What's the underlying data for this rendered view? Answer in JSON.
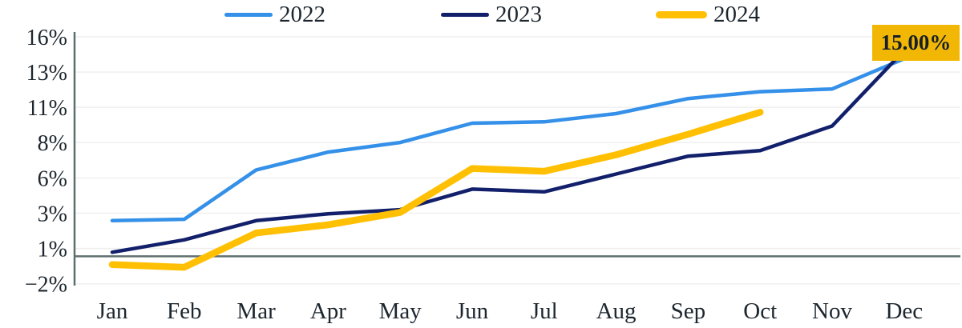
{
  "chart_data": {
    "type": "line",
    "title": "",
    "xlabel": "",
    "ylabel": "",
    "categories": [
      "Jan",
      "Feb",
      "Mar",
      "Apr",
      "May",
      "Jun",
      "Jul",
      "Aug",
      "Sep",
      "Oct",
      "Nov",
      "Dec"
    ],
    "series": [
      {
        "name": "2022",
        "color": "#3490e8",
        "line_width": 4.5,
        "values": [
          2.6,
          2.7,
          6.3,
          7.6,
          8.3,
          9.7,
          9.8,
          10.4,
          11.5,
          12.0,
          12.2,
          14.4
        ]
      },
      {
        "name": "2023",
        "color": "#12206b",
        "line_width": 4.5,
        "values": [
          0.3,
          1.2,
          2.6,
          3.1,
          3.4,
          4.9,
          4.7,
          6.0,
          7.3,
          7.7,
          9.5,
          15.0
        ]
      },
      {
        "name": "2024",
        "color": "#ffc003",
        "line_width": 8.5,
        "values": [
          -0.6,
          -0.8,
          1.7,
          2.3,
          3.2,
          6.4,
          6.2,
          7.4,
          8.9,
          10.5,
          null,
          null
        ]
      }
    ],
    "y_ticks": [
      {
        "value": 16,
        "label": "16%"
      },
      {
        "value": 13.43,
        "label": "13%"
      },
      {
        "value": 10.86,
        "label": "11%"
      },
      {
        "value": 8.29,
        "label": "8%"
      },
      {
        "value": 5.71,
        "label": "6%"
      },
      {
        "value": 3.14,
        "label": "3%"
      },
      {
        "value": 0.57,
        "label": "1%"
      },
      {
        "value": -2,
        "label": "−2%"
      }
    ],
    "ylim": [
      -2,
      16
    ],
    "zero_line_value": 0,
    "grid": true,
    "legend_position": "top",
    "annotation": {
      "text": "15.00%",
      "month": "Dec",
      "series": "2023"
    }
  },
  "legend": {
    "items": [
      {
        "label": "2022"
      },
      {
        "label": "2023"
      },
      {
        "label": "2024"
      }
    ]
  },
  "colors": {
    "series_2022": "#3490e8",
    "series_2023": "#12206b",
    "series_2024": "#ffc003",
    "annotation_bg": "#f2b705",
    "text": "#1c262e",
    "axis": "#5f6e6e",
    "gridline": "#efefef",
    "background": "#ffffff"
  }
}
